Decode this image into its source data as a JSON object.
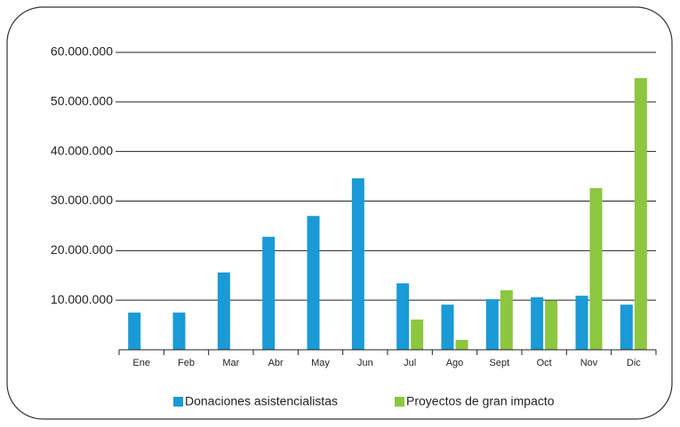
{
  "chart_data": {
    "type": "bar",
    "categories": [
      "Ene",
      "Feb",
      "Mar",
      "Abr",
      "May",
      "Jun",
      "Jul",
      "Ago",
      "Sept",
      "Oct",
      "Nov",
      "Dic"
    ],
    "series": [
      {
        "name": "Donaciones asistencialistas",
        "color": "#1a9ad6",
        "values": [
          7500000,
          7500000,
          15600000,
          22800000,
          27000000,
          34600000,
          13400000,
          9100000,
          10200000,
          10600000,
          10900000,
          9100000
        ]
      },
      {
        "name": "Proyectos de gran impacto",
        "color": "#8dc63f",
        "values": [
          null,
          null,
          null,
          null,
          null,
          null,
          6100000,
          2000000,
          12000000,
          9900000,
          32600000,
          54800000
        ]
      }
    ],
    "ylim": [
      0,
      60000000
    ],
    "yticks": [
      {
        "value": 10000000,
        "label": "10.000.000"
      },
      {
        "value": 20000000,
        "label": "20.000.000"
      },
      {
        "value": 30000000,
        "label": "30.000.000"
      },
      {
        "value": 40000000,
        "label": "40.000.000"
      },
      {
        "value": 50000000,
        "label": "50.000.000"
      },
      {
        "value": 60000000,
        "label": "60.000.000"
      }
    ],
    "grid": true
  }
}
